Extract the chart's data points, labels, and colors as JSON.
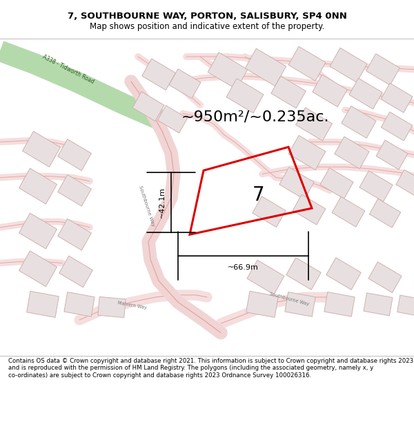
{
  "title_line1": "7, SOUTHBOURNE WAY, PORTON, SALISBURY, SP4 0NN",
  "title_line2": "Map shows position and indicative extent of the property.",
  "footer_text": "Contains OS data © Crown copyright and database right 2021. This information is subject to Crown copyright and database rights 2023 and is reproduced with the permission of HM Land Registry. The polygons (including the associated geometry, namely x, y co-ordinates) are subject to Crown copyright and database rights 2023 Ordnance Survey 100026316.",
  "area_label": "~950m²/~0.235ac.",
  "width_label": "~66.9m",
  "height_label": "~42.1m",
  "plot_number": "7",
  "map_bg": "#faf6f6",
  "road_fill": "#f5dede",
  "road_edge": "#e0a0a0",
  "building_fill": "#e8e0e0",
  "building_edge": "#d0b0b0",
  "property_color": "#dd0000",
  "green_road_fill": "#c8e8c0",
  "green_road_edge": "#88bb80",
  "dim_color": "#111111",
  "label_color": "#777777"
}
